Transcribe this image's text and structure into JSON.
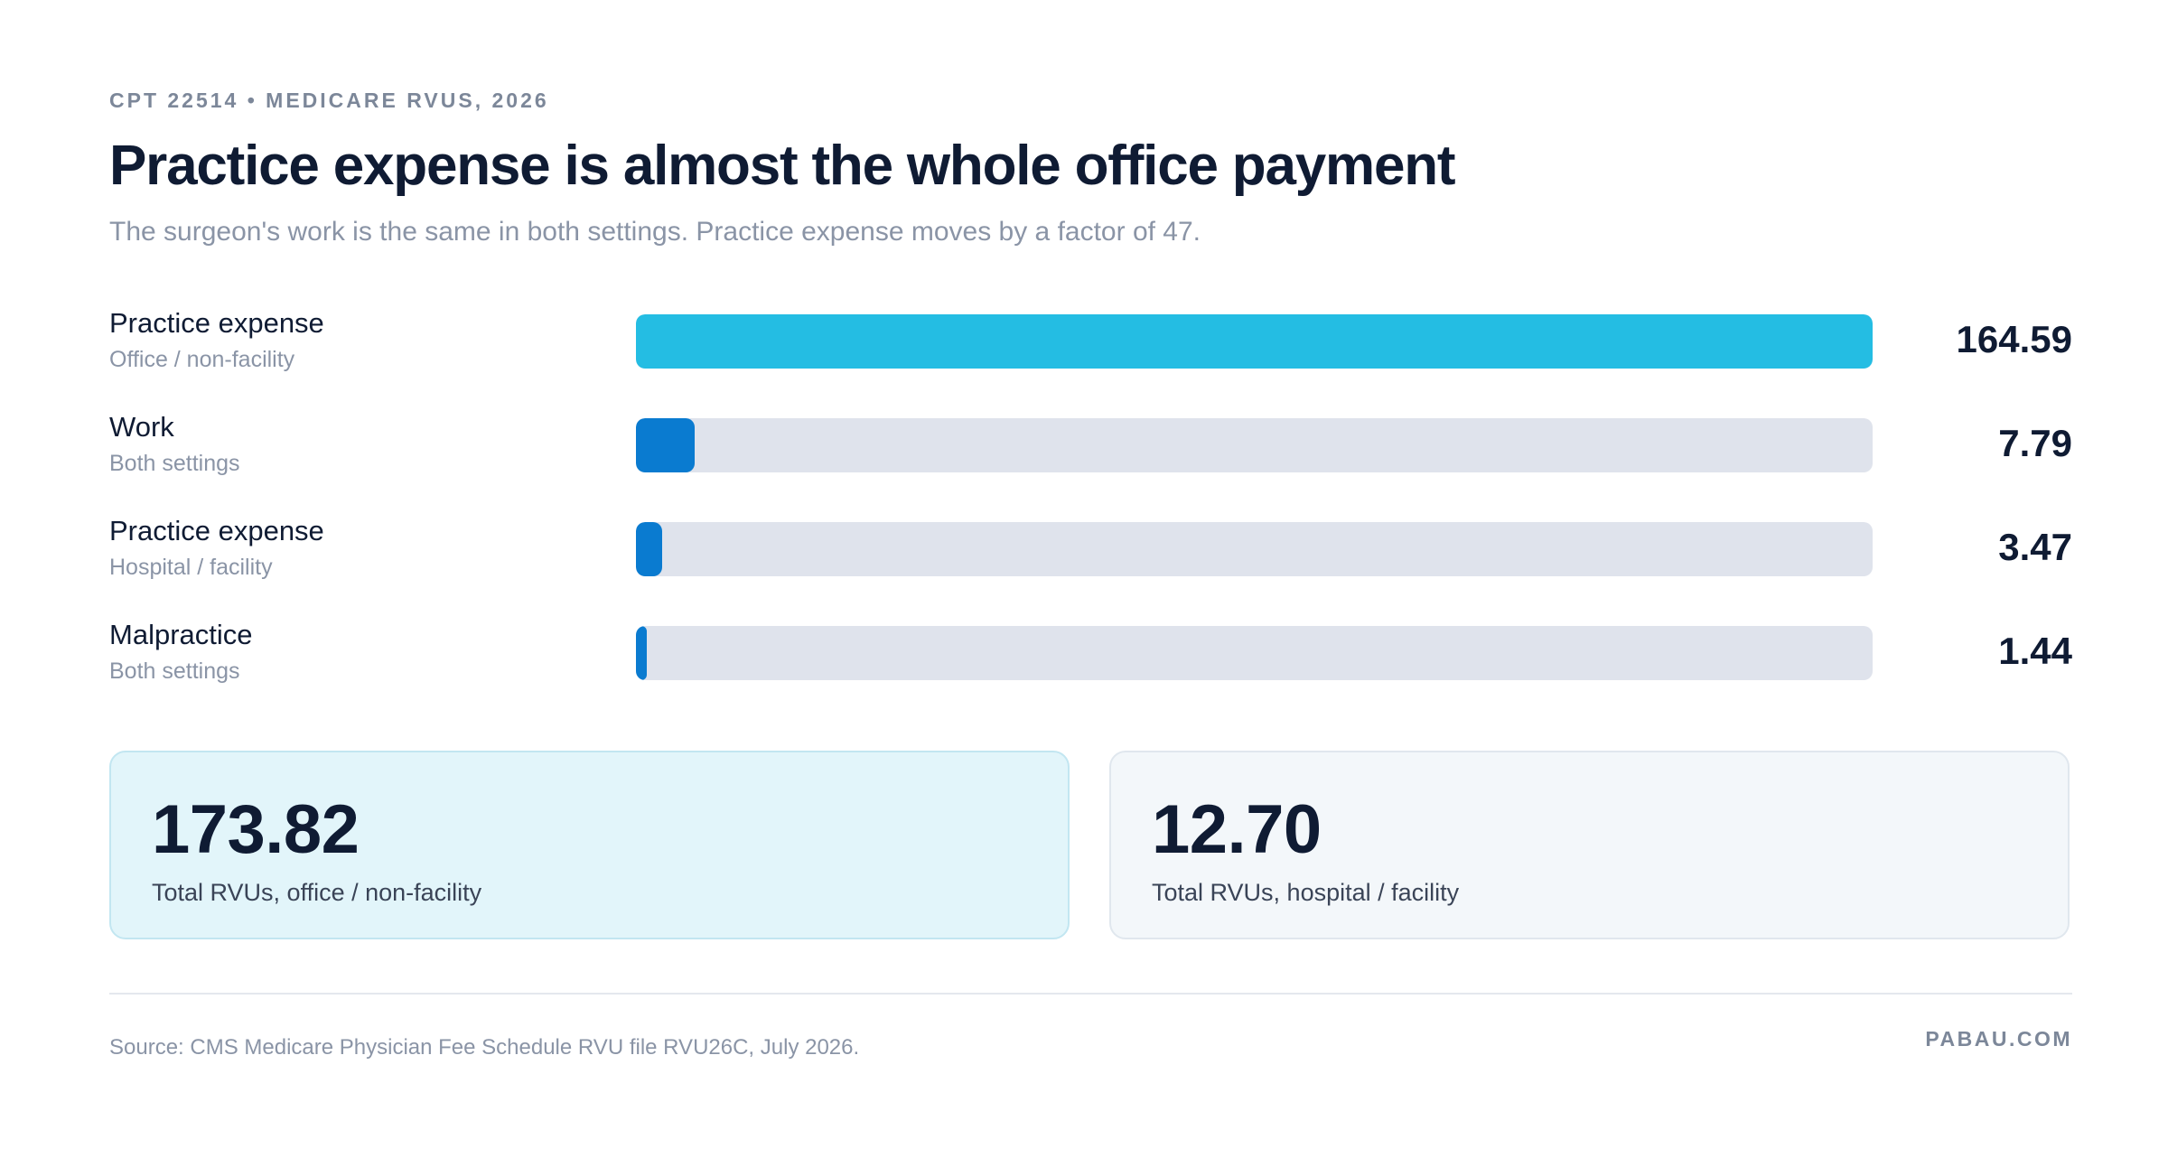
{
  "eyebrow": "CPT 22514 • MEDICARE RVUS, 2026",
  "title": "Practice expense is almost the whole office payment",
  "subtitle": "The surgeon's work is the same in both settings. Practice expense moves by a factor of 47.",
  "colors": {
    "primary_bar": "#24bde3",
    "secondary_bar": "#0a7bd0",
    "track": "#dfe3ec",
    "text_dark": "#0f1b33",
    "text_muted": "#8a94a6"
  },
  "chart_data": {
    "type": "bar",
    "orientation": "horizontal",
    "xlim": [
      0,
      164.59
    ],
    "rows": [
      {
        "label": "Practice expense",
        "sublabel": "Office / non-facility",
        "value": 164.59,
        "display": "164.59",
        "color": "#24bde3"
      },
      {
        "label": "Work",
        "sublabel": "Both settings",
        "value": 7.79,
        "display": "7.79",
        "color": "#0a7bd0"
      },
      {
        "label": "Practice expense",
        "sublabel": "Hospital / facility",
        "value": 3.47,
        "display": "3.47",
        "color": "#0a7bd0"
      },
      {
        "label": "Malpractice",
        "sublabel": "Both settings",
        "value": 1.44,
        "display": "1.44",
        "color": "#0a7bd0"
      }
    ]
  },
  "cards": [
    {
      "value": "173.82",
      "label": "Total RVUs, office / non-facility"
    },
    {
      "value": "12.70",
      "label": "Total RVUs, hospital / facility"
    }
  ],
  "footer": {
    "source": "Source: CMS Medicare Physician Fee Schedule RVU file RVU26C, July 2026.",
    "brand": "PABAU.COM"
  }
}
